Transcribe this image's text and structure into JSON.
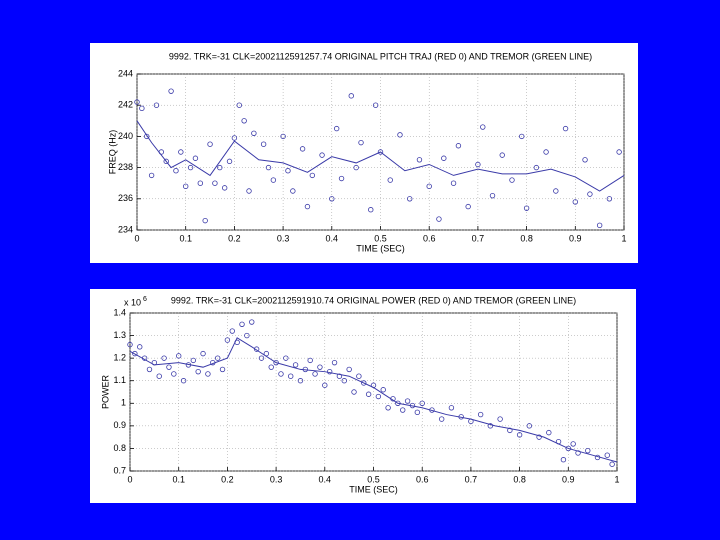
{
  "chart_data": [
    {
      "type": "scatter",
      "title": "9992. TRK=-31 CLK=2002112591257.74 ORIGINAL PITCH TRAJ (RED 0) AND TREMOR (GREEN LINE)",
      "xlabel": "TIME (SEC)",
      "ylabel": "FREQ (Hz)",
      "xlim": [
        0,
        1
      ],
      "xticks": [
        0,
        0.1,
        0.2,
        0.3,
        0.4,
        0.5,
        0.6,
        0.7,
        0.8,
        0.9,
        1
      ],
      "ylim": [
        234,
        244
      ],
      "yticks": [
        234,
        236,
        238,
        240,
        242,
        244
      ],
      "grid": true,
      "color": "#3a3aa8",
      "points": {
        "x": [
          0,
          0.01,
          0.02,
          0.03,
          0.04,
          0.05,
          0.06,
          0.07,
          0.08,
          0.09,
          0.1,
          0.11,
          0.12,
          0.13,
          0.14,
          0.15,
          0.16,
          0.17,
          0.18,
          0.19,
          0.2,
          0.21,
          0.22,
          0.23,
          0.24,
          0.26,
          0.27,
          0.28,
          0.3,
          0.31,
          0.32,
          0.34,
          0.35,
          0.36,
          0.38,
          0.4,
          0.41,
          0.42,
          0.44,
          0.45,
          0.46,
          0.48,
          0.49,
          0.5,
          0.52,
          0.54,
          0.56,
          0.58,
          0.6,
          0.62,
          0.63,
          0.65,
          0.66,
          0.68,
          0.7,
          0.71,
          0.73,
          0.75,
          0.77,
          0.79,
          0.8,
          0.82,
          0.84,
          0.86,
          0.88,
          0.9,
          0.92,
          0.93,
          0.95,
          0.97,
          0.99
        ],
        "y": [
          242.2,
          241.8,
          240,
          237.5,
          242,
          239,
          238.4,
          242.9,
          237.8,
          239,
          236.8,
          238,
          238.6,
          237,
          234.6,
          239.5,
          237,
          238,
          236.7,
          238.4,
          239.9,
          242,
          241,
          236.5,
          240.2,
          239.5,
          238,
          237.2,
          240,
          237.8,
          236.5,
          239.2,
          235.5,
          237.5,
          238.8,
          236,
          240.5,
          237.3,
          242.6,
          238,
          239.6,
          235.3,
          242,
          239,
          237.2,
          240.1,
          236,
          238.5,
          236.8,
          234.7,
          238.6,
          237,
          239.4,
          235.5,
          238.2,
          240.6,
          236.2,
          238.8,
          237.2,
          240,
          235.4,
          238,
          239,
          236.5,
          240.5,
          235.8,
          238.5,
          236.3,
          234.3,
          236,
          239
        ]
      },
      "trend": {
        "x": [
          0,
          0.03,
          0.07,
          0.1,
          0.15,
          0.2,
          0.25,
          0.3,
          0.35,
          0.4,
          0.45,
          0.5,
          0.55,
          0.6,
          0.65,
          0.7,
          0.75,
          0.8,
          0.85,
          0.9,
          0.95,
          1
        ],
        "y": [
          241,
          239.6,
          238,
          238.5,
          237.5,
          239.7,
          238.5,
          238.3,
          237.7,
          238.7,
          238.3,
          239,
          237.8,
          238.2,
          237.5,
          237.9,
          237.6,
          237.6,
          237.9,
          237.4,
          236.5,
          237.5
        ]
      }
    },
    {
      "type": "scatter",
      "title": "9992. TRK=-31 CLK=2002112591910.74 ORIGINAL POWER (RED 0) AND TREMOR (GREEN LINE)",
      "xlabel": "TIME (SEC)",
      "ylabel": "POWER",
      "multiplier": "x 10",
      "exponent": "6",
      "xlim": [
        0,
        1
      ],
      "xticks": [
        0,
        0.1,
        0.2,
        0.3,
        0.4,
        0.5,
        0.6,
        0.7,
        0.8,
        0.9,
        1
      ],
      "ylim": [
        0.7,
        1.4
      ],
      "yticks": [
        0.7,
        0.8,
        0.9,
        1,
        1.1,
        1.2,
        1.3,
        1.4
      ],
      "grid": true,
      "color": "#3a3aa8",
      "points": {
        "x": [
          0,
          0.01,
          0.02,
          0.03,
          0.04,
          0.05,
          0.06,
          0.07,
          0.08,
          0.09,
          0.1,
          0.11,
          0.12,
          0.13,
          0.14,
          0.15,
          0.16,
          0.17,
          0.18,
          0.19,
          0.2,
          0.21,
          0.22,
          0.23,
          0.24,
          0.25,
          0.26,
          0.27,
          0.28,
          0.29,
          0.3,
          0.31,
          0.32,
          0.33,
          0.34,
          0.35,
          0.36,
          0.37,
          0.38,
          0.39,
          0.4,
          0.41,
          0.42,
          0.43,
          0.44,
          0.45,
          0.46,
          0.47,
          0.48,
          0.49,
          0.5,
          0.51,
          0.52,
          0.53,
          0.54,
          0.55,
          0.56,
          0.57,
          0.58,
          0.59,
          0.6,
          0.62,
          0.64,
          0.66,
          0.68,
          0.7,
          0.72,
          0.74,
          0.76,
          0.78,
          0.8,
          0.82,
          0.84,
          0.86,
          0.88,
          0.89,
          0.9,
          0.91,
          0.92,
          0.94,
          0.96,
          0.98,
          0.99
        ],
        "y": [
          1.26,
          1.22,
          1.25,
          1.2,
          1.15,
          1.18,
          1.12,
          1.2,
          1.16,
          1.13,
          1.21,
          1.1,
          1.17,
          1.19,
          1.14,
          1.22,
          1.13,
          1.18,
          1.2,
          1.15,
          1.28,
          1.32,
          1.27,
          1.35,
          1.3,
          1.36,
          1.24,
          1.2,
          1.22,
          1.16,
          1.18,
          1.13,
          1.2,
          1.12,
          1.17,
          1.1,
          1.15,
          1.19,
          1.13,
          1.16,
          1.08,
          1.14,
          1.18,
          1.12,
          1.1,
          1.15,
          1.05,
          1.12,
          1.09,
          1.04,
          1.08,
          1.03,
          1.06,
          0.98,
          1.02,
          1,
          0.97,
          1.01,
          0.99,
          0.96,
          1,
          0.97,
          0.93,
          0.98,
          0.94,
          0.92,
          0.95,
          0.9,
          0.93,
          0.88,
          0.86,
          0.9,
          0.85,
          0.87,
          0.83,
          0.75,
          0.8,
          0.82,
          0.78,
          0.79,
          0.76,
          0.77,
          0.73
        ]
      },
      "trend": {
        "x": [
          0,
          0.05,
          0.1,
          0.15,
          0.2,
          0.22,
          0.25,
          0.3,
          0.35,
          0.4,
          0.45,
          0.5,
          0.55,
          0.6,
          0.65,
          0.7,
          0.75,
          0.8,
          0.85,
          0.9,
          0.95,
          1
        ],
        "y": [
          1.23,
          1.17,
          1.18,
          1.16,
          1.2,
          1.29,
          1.25,
          1.18,
          1.15,
          1.14,
          1.12,
          1.07,
          1,
          0.98,
          0.95,
          0.93,
          0.9,
          0.88,
          0.85,
          0.8,
          0.77,
          0.74
        ]
      }
    }
  ]
}
